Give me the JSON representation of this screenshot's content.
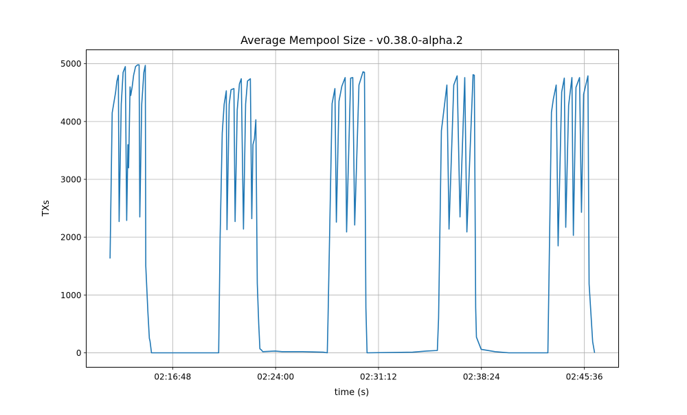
{
  "chart_data": {
    "type": "line",
    "title": "Average Mempool Size  -  v0.38.0-alpha.2",
    "xlabel": "time (s)",
    "ylabel": "TXs",
    "xlim": [
      "02:10:45",
      "02:48:00"
    ],
    "ylim": [
      -250,
      5240
    ],
    "xticks": [
      "02:16:48",
      "02:24:00",
      "02:31:12",
      "02:38:24",
      "02:45:36"
    ],
    "yticks": [
      0,
      1000,
      2000,
      3000,
      4000,
      5000
    ],
    "grid": true,
    "line_color": "#1f77b4",
    "series": [
      {
        "x": [
          "02:12:25",
          "02:12:34",
          "02:12:40",
          "02:12:48",
          "02:12:54",
          "02:13:00",
          "02:13:03",
          "02:13:12",
          "02:13:20",
          "02:13:29",
          "02:13:35",
          "02:13:40",
          "02:13:43",
          "02:13:49",
          "02:13:52",
          "02:13:58",
          "02:14:04",
          "02:14:12",
          "02:14:21",
          "02:14:27",
          "02:14:30",
          "02:14:38",
          "02:14:47",
          "02:14:53",
          "02:14:55",
          "02:15:04",
          "02:15:10",
          "02:15:13",
          "02:15:19",
          "02:20:01",
          "02:20:07",
          "02:20:16",
          "02:20:24",
          "02:20:33",
          "02:20:36",
          "02:20:45",
          "02:20:53",
          "02:21:05",
          "02:21:10",
          "02:21:19",
          "02:21:28",
          "02:21:36",
          "02:21:45",
          "02:21:54",
          "02:22:02",
          "02:22:14",
          "02:22:20",
          "02:22:25",
          "02:22:31",
          "02:22:37",
          "02:22:43",
          "02:22:49",
          "02:22:54",
          "02:23:00",
          "02:23:06",
          "02:23:58",
          "02:24:27",
          "02:25:53",
          "02:27:20",
          "02:27:37",
          "02:27:40",
          "02:27:57",
          "02:28:09",
          "02:28:15",
          "02:28:26",
          "02:28:38",
          "02:28:52",
          "02:28:58",
          "02:29:15",
          "02:29:24",
          "02:29:32",
          "02:29:50",
          "02:30:07",
          "02:30:13",
          "02:30:19",
          "02:30:24",
          "02:33:35",
          "02:34:33",
          "02:35:19",
          "02:35:24",
          "02:35:36",
          "02:35:59",
          "02:36:08",
          "02:36:28",
          "02:36:42",
          "02:36:54",
          "02:37:14",
          "02:37:23",
          "02:37:49",
          "02:37:54",
          "02:38:00",
          "02:38:03",
          "02:38:23",
          "02:39:21",
          "02:40:19",
          "02:43:03",
          "02:43:18",
          "02:43:26",
          "02:43:38",
          "02:43:46",
          "02:44:01",
          "02:44:12",
          "02:44:18",
          "02:44:30",
          "02:44:44",
          "02:44:50",
          "02:45:01",
          "02:45:16",
          "02:45:24",
          "02:45:33",
          "02:45:51",
          "02:45:56",
          "02:46:11",
          "02:46:19"
        ],
        "y": [
          1630,
          4150,
          4300,
          4500,
          4700,
          4800,
          2270,
          4300,
          4850,
          4950,
          2290,
          3600,
          3200,
          4600,
          4450,
          4600,
          4800,
          4950,
          4980,
          4980,
          2350,
          4300,
          4850,
          4970,
          1500,
          700,
          250,
          200,
          0,
          0,
          2000,
          3800,
          4300,
          4530,
          2130,
          4300,
          4550,
          4570,
          2270,
          4200,
          4650,
          4740,
          2140,
          4300,
          4700,
          4740,
          2320,
          3600,
          3700,
          4030,
          1200,
          500,
          70,
          50,
          20,
          30,
          20,
          20,
          10,
          0,
          600,
          4310,
          4570,
          2260,
          4350,
          4610,
          4760,
          2090,
          4750,
          4760,
          2210,
          4630,
          4860,
          4850,
          780,
          0,
          10,
          30,
          40,
          600,
          3840,
          4630,
          2140,
          4630,
          4790,
          2350,
          4760,
          2090,
          4810,
          4800,
          780,
          270,
          60,
          20,
          0,
          0,
          4160,
          4390,
          4630,
          1850,
          4510,
          4750,
          2170,
          4280,
          4760,
          2030,
          4590,
          4760,
          2430,
          4470,
          4790,
          1190,
          190,
          0
        ]
      }
    ]
  }
}
